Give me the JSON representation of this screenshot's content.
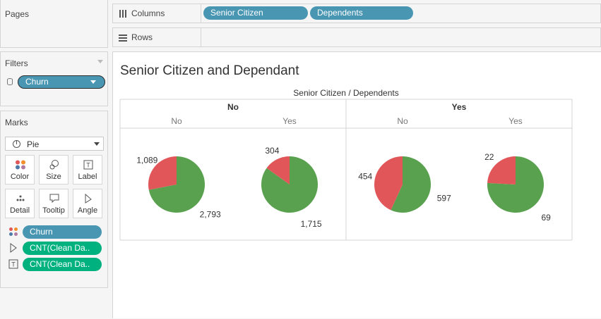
{
  "pages": {
    "title": "Pages"
  },
  "shelves": {
    "columns": {
      "title": "Columns",
      "pills": [
        "Senior Citizen",
        "Dependents"
      ]
    },
    "rows": {
      "title": "Rows"
    }
  },
  "filters": {
    "title": "Filters",
    "pill": "Churn"
  },
  "marks": {
    "title": "Marks",
    "mark_type": "Pie",
    "buttons": [
      "Color",
      "Size",
      "Label",
      "Detail",
      "Tooltip",
      "Angle"
    ],
    "encodings": [
      {
        "type": "color",
        "label": "Churn",
        "color": "#4996b2"
      },
      {
        "type": "angle",
        "label": "CNT(Clean Da..",
        "color": "#00b180"
      },
      {
        "type": "label",
        "label": "CNT(Clean Da..",
        "color": "#00b180"
      }
    ]
  },
  "view": {
    "title": "Senior Citizen and Dependant"
  },
  "chart_data": {
    "type": "pie",
    "header": "Senior Citizen / Dependents",
    "colors": {
      "No": "#59a14f",
      "Yes": "#e15759"
    },
    "groups": [
      {
        "senior_citizen": "No",
        "panes": [
          {
            "dependents": "No",
            "slices": [
              {
                "churn": "Yes",
                "value": 1089,
                "label": "1,089"
              },
              {
                "churn": "No",
                "value": 2793,
                "label": "2,793"
              }
            ]
          },
          {
            "dependents": "Yes",
            "slices": [
              {
                "churn": "Yes",
                "value": 304,
                "label": "304"
              },
              {
                "churn": "No",
                "value": 1715,
                "label": "1,715"
              }
            ]
          }
        ]
      },
      {
        "senior_citizen": "Yes",
        "panes": [
          {
            "dependents": "No",
            "slices": [
              {
                "churn": "Yes",
                "value": 454,
                "label": "454"
              },
              {
                "churn": "No",
                "value": 597,
                "label": "597"
              }
            ]
          },
          {
            "dependents": "Yes",
            "slices": [
              {
                "churn": "Yes",
                "value": 22,
                "label": "22"
              },
              {
                "churn": "No",
                "value": 69,
                "label": "69"
              }
            ]
          }
        ]
      }
    ]
  }
}
